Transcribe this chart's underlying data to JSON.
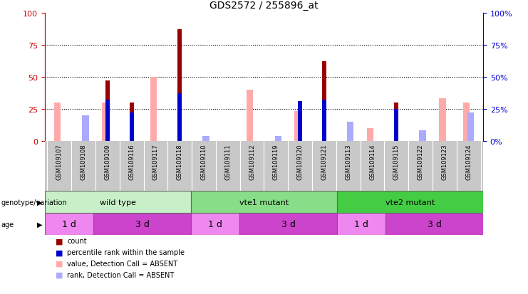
{
  "title": "GDS2572 / 255896_at",
  "samples": [
    "GSM109107",
    "GSM109108",
    "GSM109109",
    "GSM109116",
    "GSM109117",
    "GSM109118",
    "GSM109110",
    "GSM109111",
    "GSM109112",
    "GSM109119",
    "GSM109120",
    "GSM109121",
    "GSM109113",
    "GSM109114",
    "GSM109115",
    "GSM109122",
    "GSM109123",
    "GSM109124"
  ],
  "count_values": [
    0,
    0,
    47,
    30,
    0,
    87,
    0,
    0,
    0,
    0,
    0,
    62,
    0,
    0,
    30,
    0,
    0,
    0
  ],
  "percentile_rank": [
    null,
    null,
    32,
    22,
    null,
    37,
    null,
    null,
    null,
    null,
    31,
    32,
    null,
    null,
    25,
    null,
    null,
    null
  ],
  "value_absent": [
    30,
    null,
    30,
    null,
    50,
    null,
    null,
    null,
    40,
    null,
    23,
    null,
    null,
    10,
    null,
    null,
    33,
    30
  ],
  "rank_absent": [
    null,
    20,
    null,
    null,
    null,
    null,
    4,
    null,
    null,
    4,
    null,
    null,
    15,
    null,
    null,
    8,
    null,
    22
  ],
  "genotype_groups": [
    {
      "label": "wild type",
      "start": 0,
      "end": 6,
      "color": "#c8f0c8"
    },
    {
      "label": "vte1 mutant",
      "start": 6,
      "end": 12,
      "color": "#88dd88"
    },
    {
      "label": "vte2 mutant",
      "start": 12,
      "end": 18,
      "color": "#44cc44"
    }
  ],
  "age_groups": [
    {
      "label": "1 d",
      "start": 0,
      "end": 2,
      "color": "#ee88ee"
    },
    {
      "label": "3 d",
      "start": 2,
      "end": 6,
      "color": "#cc44cc"
    },
    {
      "label": "1 d",
      "start": 6,
      "end": 8,
      "color": "#ee88ee"
    },
    {
      "label": "3 d",
      "start": 8,
      "end": 12,
      "color": "#cc44cc"
    },
    {
      "label": "1 d",
      "start": 12,
      "end": 14,
      "color": "#ee88ee"
    },
    {
      "label": "3 d",
      "start": 14,
      "end": 18,
      "color": "#cc44cc"
    }
  ],
  "ylim": [
    0,
    100
  ],
  "yticks": [
    0,
    25,
    50,
    75,
    100
  ],
  "count_color": "#990000",
  "percentile_color": "#0000cc",
  "value_absent_color": "#ffaaaa",
  "rank_absent_color": "#aaaaff",
  "legend_items": [
    {
      "label": "count",
      "color": "#990000"
    },
    {
      "label": "percentile rank within the sample",
      "color": "#0000cc"
    },
    {
      "label": "value, Detection Call = ABSENT",
      "color": "#ffaaaa"
    },
    {
      "label": "rank, Detection Call = ABSENT",
      "color": "#aaaaff"
    }
  ],
  "axis_left_color": "#cc0000",
  "axis_right_color": "#0000cc",
  "background_color": "#ffffff",
  "xtick_bg_color": "#c8c8c8"
}
